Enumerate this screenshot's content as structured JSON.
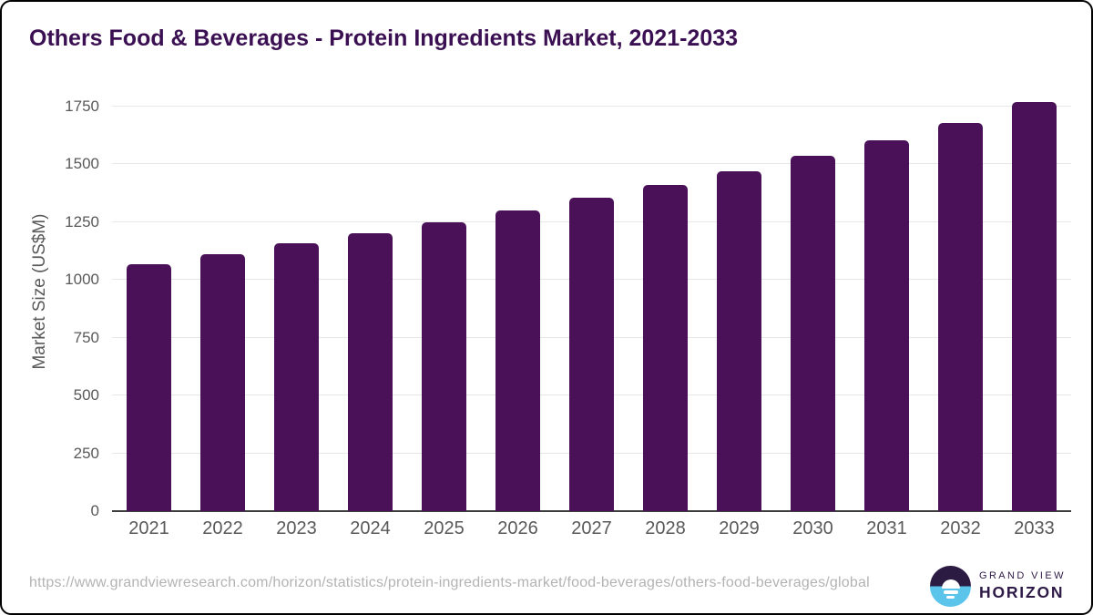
{
  "header": {
    "title": "Others Food & Beverages - Protein Ingredients Market, 2021-2033"
  },
  "footer": {
    "source_url": "https://www.grandviewresearch.com/horizon/statistics/protein-ingredients-market/food-beverages/others-food-beverages/global",
    "logo": {
      "top_text": "GRAND VIEW",
      "bottom_text": "HORIZON"
    }
  },
  "colors": {
    "bar": "#4A1158",
    "title": "#3B1053",
    "axis_text": "#595959",
    "gridline": "#E7E7E7",
    "baseline": "#3D3D3D",
    "url_text": "#B3B3B3",
    "logo_dark": "#2B1B43",
    "logo_blue": "#5BC4EA",
    "logo_text": "#2E1A47"
  },
  "chart_data": {
    "type": "bar",
    "title": "Others Food & Beverages - Protein Ingredients Market, 2021-2033",
    "categories": [
      "2021",
      "2022",
      "2023",
      "2024",
      "2025",
      "2026",
      "2027",
      "2028",
      "2029",
      "2030",
      "2031",
      "2032",
      "2033"
    ],
    "values": [
      1070,
      1112,
      1158,
      1203,
      1249,
      1301,
      1356,
      1411,
      1469,
      1537,
      1604,
      1679,
      1768
    ],
    "xlabel": "",
    "ylabel": "Market Size (US$M)",
    "ylim": [
      0,
      1750
    ],
    "ytick_step": 250,
    "yticks": [
      "0",
      "250",
      "500",
      "750",
      "1000",
      "1250",
      "1500",
      "1750"
    ],
    "grid": "horizontal-only",
    "legend": "none",
    "bar_color": "#4A1158"
  }
}
